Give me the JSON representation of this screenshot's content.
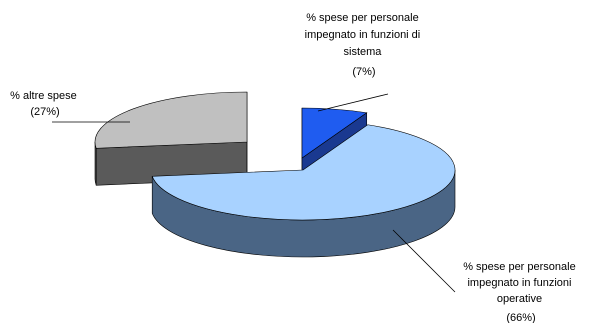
{
  "chart_data": {
    "type": "pie",
    "style": "3d-exploded",
    "title": "",
    "slices": [
      {
        "label_lines": [
          "% spese per personale",
          "impegnato in funzioni di",
          "sistema",
          "(7%)"
        ],
        "value": 7,
        "color": "#1f5cf0",
        "side_color": "#1a3990"
      },
      {
        "label_lines": [
          "% spese per personale",
          "impegnato in funzioni",
          "operative",
          "(66%)"
        ],
        "value": 66,
        "color": "#a8d2ff",
        "side_color": "#4a6585"
      },
      {
        "label_lines": [
          "% altre spese",
          "(27%)"
        ],
        "value": 27,
        "color": "#c0c0c0",
        "side_color": "#5a5a5a"
      }
    ]
  }
}
